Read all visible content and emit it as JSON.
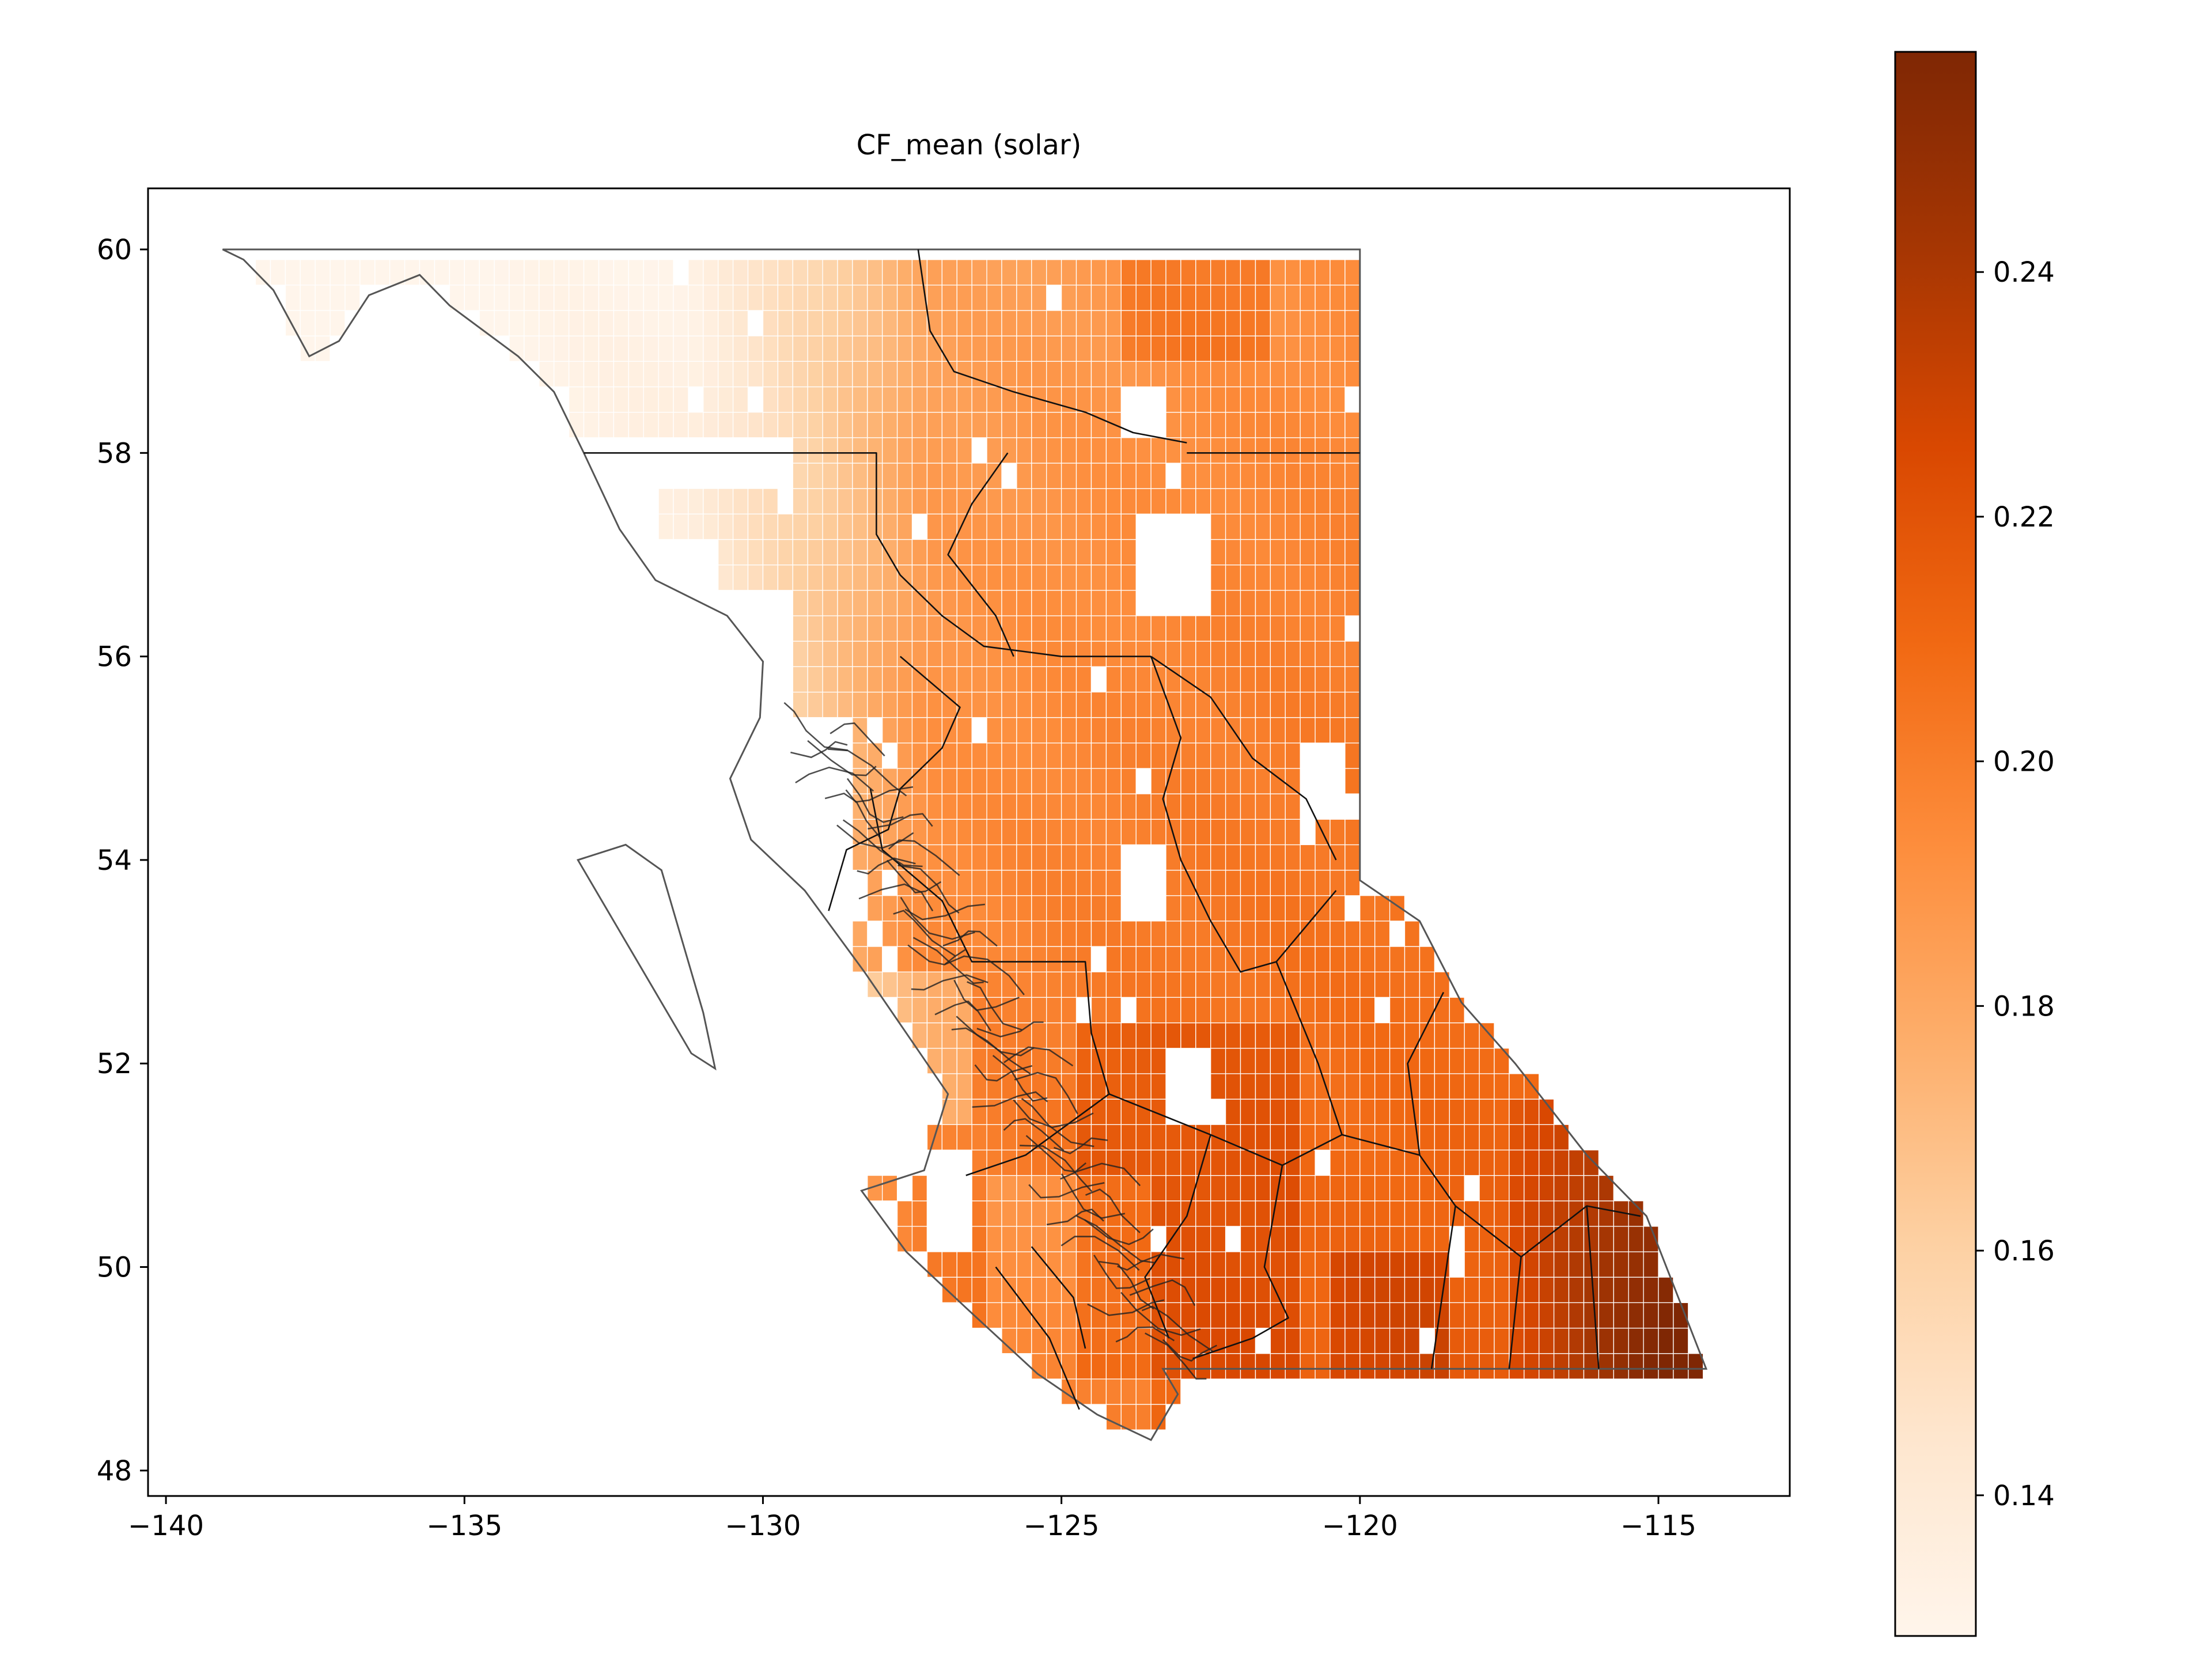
{
  "figure": {
    "title": "CF_mean (solar)"
  },
  "map": {
    "type": "choropleth-grid",
    "variable": "CF_mean (solar)",
    "x_ticks": [
      "−140",
      "−135",
      "−130",
      "−125",
      "−120",
      "−115"
    ],
    "y_ticks": [
      "48",
      "50",
      "52",
      "54",
      "56",
      "58",
      "60"
    ],
    "x_tick_values": [
      -140,
      -135,
      -130,
      -125,
      -120,
      -115
    ],
    "y_tick_values": [
      48,
      50,
      52,
      54,
      56,
      58,
      60
    ],
    "xlim": [
      -140.3,
      -112.8
    ],
    "ylim": [
      47.75,
      60.6
    ],
    "cell_size_deg": 0.25,
    "outline_color": "#555555",
    "region_border_color": "#111111"
  },
  "colorbar": {
    "colormap": "Oranges",
    "ticks": [
      "0.14",
      "0.16",
      "0.18",
      "0.20",
      "0.22",
      "0.24"
    ],
    "tick_values": [
      0.14,
      0.16,
      0.18,
      0.2,
      0.22,
      0.24
    ],
    "vmin": 0.1285,
    "vmax": 0.258,
    "stops": [
      "#fff5eb",
      "#fee6ce",
      "#fdd0a2",
      "#fdae6b",
      "#fd8d3c",
      "#f16913",
      "#d94801",
      "#a63603",
      "#7f2704"
    ]
  }
}
